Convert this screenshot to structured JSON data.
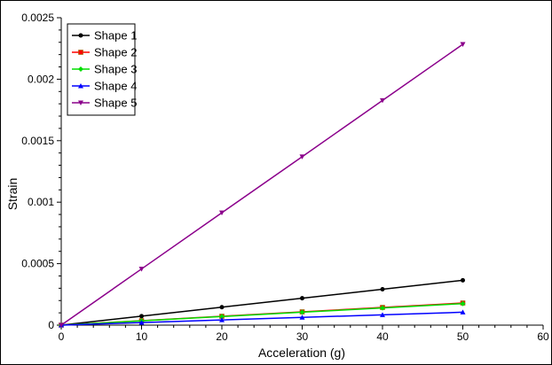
{
  "chart_data": {
    "type": "line",
    "title": "",
    "xlabel": "Acceleration (g)",
    "ylabel": "Strain",
    "xlim": [
      0,
      60
    ],
    "ylim": [
      0,
      0.0025
    ],
    "x_ticks": [
      "0",
      "10",
      "20",
      "30",
      "40",
      "50",
      "60"
    ],
    "y_ticks": [
      "0",
      "0.0005",
      "0.001",
      "0.0015",
      "0.002",
      "0.0025"
    ],
    "grid": false,
    "legend_position": "top-left",
    "x": [
      0,
      10,
      20,
      30,
      40,
      50
    ],
    "series": [
      {
        "name": "Shape 1",
        "color": "#000000",
        "marker": "circle",
        "values": [
          0,
          7.3e-05,
          0.000146,
          0.000219,
          0.000292,
          0.000365
        ]
      },
      {
        "name": "Shape 2",
        "color": "#ff0000",
        "marker": "square",
        "values": [
          0,
          3.6e-05,
          7.2e-05,
          0.000108,
          0.000144,
          0.00018
        ]
      },
      {
        "name": "Shape 3",
        "color": "#00dd00",
        "marker": "diamond",
        "values": [
          0,
          3.5e-05,
          7e-05,
          0.000105,
          0.00014,
          0.000175
        ]
      },
      {
        "name": "Shape 4",
        "color": "#0000ff",
        "marker": "triangle-up",
        "values": [
          0,
          2.1e-05,
          4.2e-05,
          6.3e-05,
          8.4e-05,
          0.000105
        ]
      },
      {
        "name": "Shape 5",
        "color": "#8b008b",
        "marker": "triangle-down",
        "values": [
          0,
          0.000457,
          0.000914,
          0.00137,
          0.001827,
          0.002284
        ]
      }
    ]
  }
}
